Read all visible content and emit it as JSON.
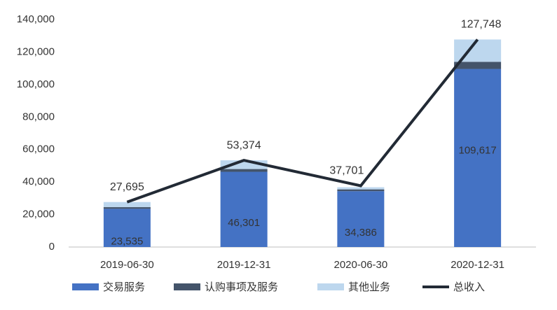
{
  "chart_data": {
    "type": "stacked-bar-line",
    "categories": [
      "2019-06-30",
      "2019-12-31",
      "2020-06-30",
      "2020-12-31"
    ],
    "series": [
      {
        "name": "交易服务",
        "color": "#4472c4",
        "values": [
          23535,
          46301,
          34386,
          109617
        ],
        "value_labels": [
          "23,535",
          "46,301",
          "34,386",
          "109,617"
        ]
      },
      {
        "name": "认购事项及服务",
        "color": "#44546a",
        "values": [
          1000,
          1700,
          1100,
          4400
        ]
      },
      {
        "name": "其他业务",
        "color": "#bdd7ee",
        "values": [
          3160,
          5373,
          1314,
          13731
        ]
      },
      {
        "name": "总收入",
        "type": "line",
        "color": "#222a35",
        "values": [
          27695,
          53374,
          37701,
          127748
        ],
        "value_labels": [
          "27,695",
          "53,374",
          "37,701",
          "127,748"
        ]
      }
    ],
    "ylim": [
      0,
      140000
    ],
    "yticks": [
      0,
      {
        "value": 20000,
        "label": "20,000"
      },
      {
        "value": 40000,
        "label": "40,000"
      },
      {
        "value": 60000,
        "label": "60,000"
      },
      {
        "value": 80000,
        "label": "80,000"
      },
      {
        "value": 100000,
        "label": "100,000"
      },
      {
        "value": 120000,
        "label": "120,000"
      },
      {
        "value": 140000,
        "label": "140,000"
      }
    ],
    "grid": false,
    "legend": "bottom"
  }
}
